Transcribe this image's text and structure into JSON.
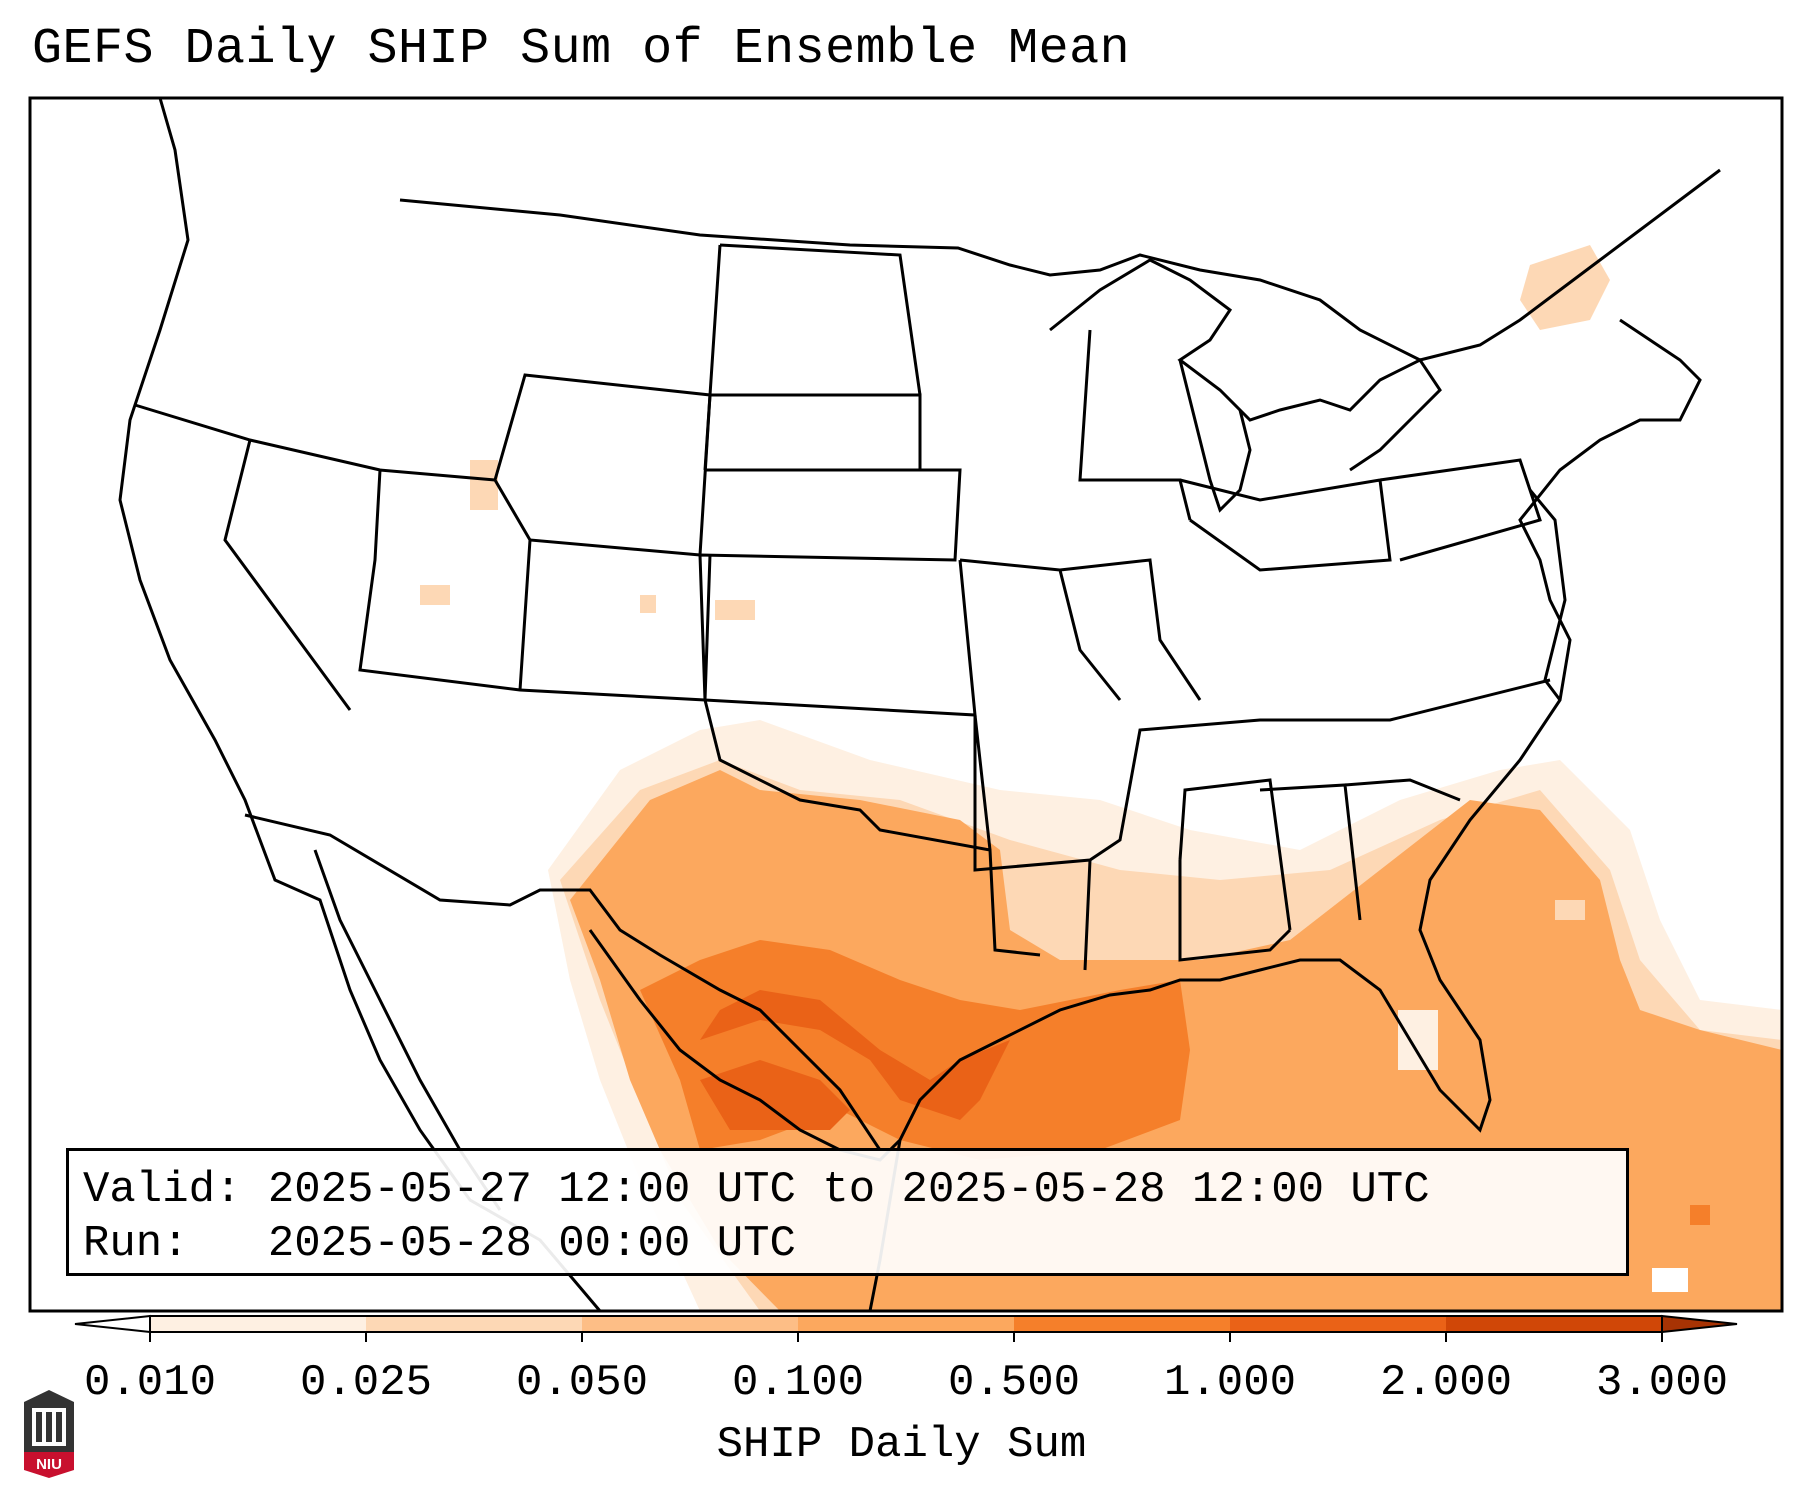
{
  "title": "GEFS Daily SHIP Sum of Ensemble Mean",
  "info": {
    "valid": "Valid: 2025-05-27 12:00 UTC to 2025-05-28 12:00 UTC",
    "run": "Run:   2025-05-28 00:00 UTC"
  },
  "colorbar": {
    "label": "SHIP Daily Sum",
    "ticks": [
      "0.010",
      "0.025",
      "0.050",
      "0.100",
      "0.500",
      "1.000",
      "2.000",
      "3.000"
    ],
    "colors": [
      "#fef0e2",
      "#fdd8b5",
      "#fdbe86",
      "#fca85e",
      "#f57f2a",
      "#ea6217",
      "#d04707"
    ],
    "under_color": "#ffffff",
    "over_color": "#a73304"
  },
  "logo": {
    "text": "NIU",
    "color": "#c8102e"
  }
}
